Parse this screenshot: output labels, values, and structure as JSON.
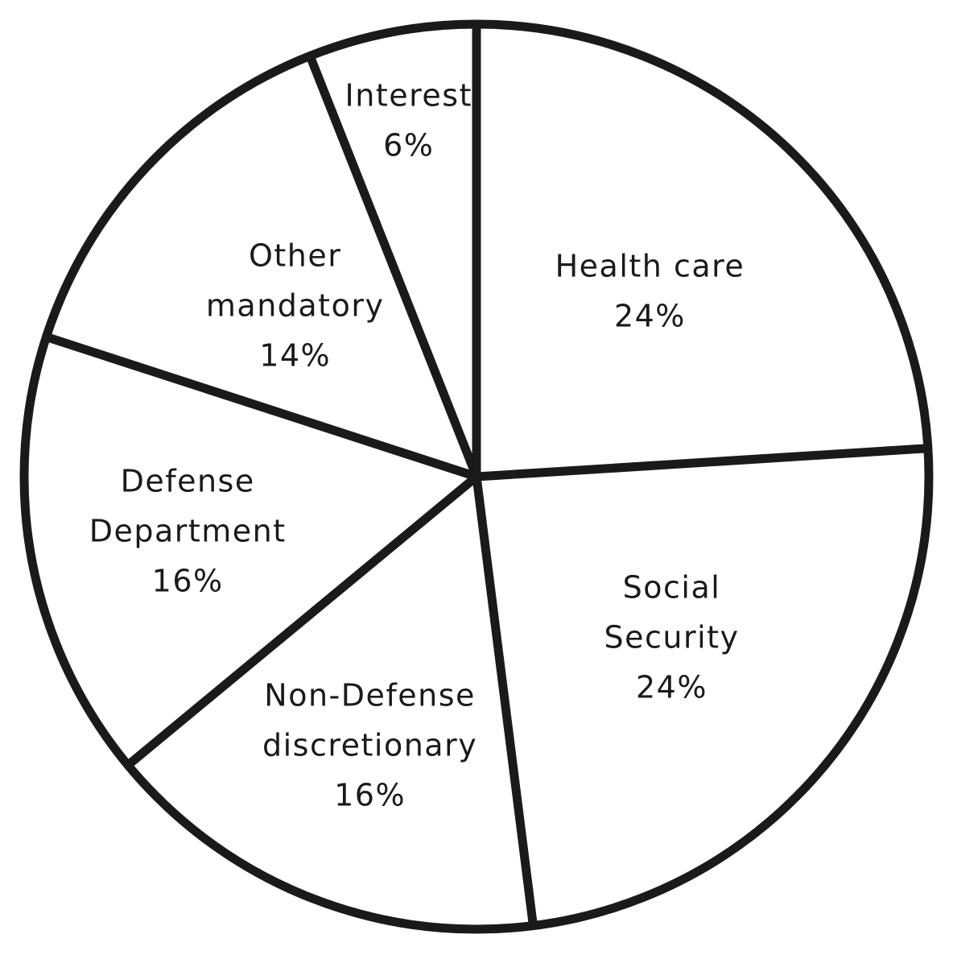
{
  "chart_data": {
    "type": "pie",
    "start_angle_deg": 0,
    "direction": "clockwise",
    "stroke_color": "#1a1a1a",
    "fill_color": "#ffffff",
    "slices": [
      {
        "name": "Health care",
        "label": [
          "Health care",
          "24%"
        ],
        "value": 24
      },
      {
        "name": "Social Security",
        "label": [
          "Social",
          "Security",
          "24%"
        ],
        "value": 24
      },
      {
        "name": "Non-Defense discretionary",
        "label": [
          "Non-Defense",
          "discretionary",
          "16%"
        ],
        "value": 16
      },
      {
        "name": "Defense Department",
        "label": [
          "Defense",
          "Department",
          "16%"
        ],
        "value": 16
      },
      {
        "name": "Other mandatory",
        "label": [
          "Other",
          "mandatory",
          "14%"
        ],
        "value": 14
      },
      {
        "name": "Interest",
        "label": [
          "Interest",
          "6%"
        ],
        "value": 6
      }
    ]
  }
}
